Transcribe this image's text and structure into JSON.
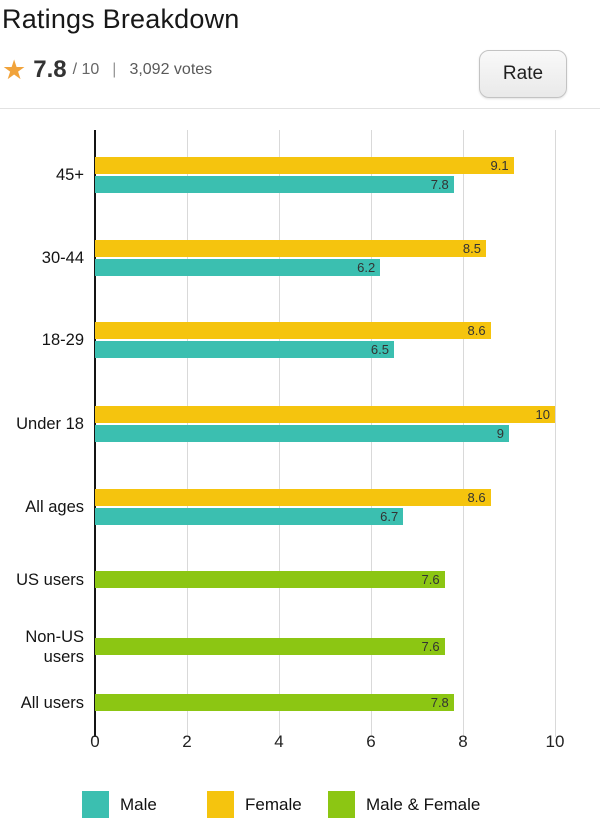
{
  "header": {
    "title": "Ratings Breakdown",
    "rating": {
      "star_icon": "★",
      "score": "7.8",
      "out_of": "/ 10",
      "separator": "|",
      "votes": "3,092 votes"
    },
    "rate_button_label": "Rate"
  },
  "colors": {
    "male": "#3BBFB0",
    "female": "#F5C40E",
    "male_female": "#8CC613",
    "star": "#F1A33B",
    "grid": "#D9D9D9",
    "axis": "#141414"
  },
  "chart_data": {
    "type": "bar",
    "orientation": "horizontal",
    "title": "Ratings Breakdown",
    "xlabel": "",
    "ylabel": "",
    "xlim": [
      0,
      10
    ],
    "xticks": [
      0,
      2,
      4,
      6,
      8,
      10
    ],
    "grid": true,
    "value_labels": "inside-end",
    "legend_position": "bottom",
    "legend": [
      {
        "name": "Male",
        "color": "#3BBFB0"
      },
      {
        "name": "Female",
        "color": "#F5C40E"
      },
      {
        "name": "Male & Female",
        "color": "#8CC613"
      }
    ],
    "categories": [
      "45+",
      "30-44",
      "18-29",
      "Under 18",
      "All ages",
      "US users",
      "Non-US users",
      "All users"
    ],
    "rows": [
      {
        "label": "45+",
        "bars": [
          {
            "series": "Female",
            "value": 9.1
          },
          {
            "series": "Male",
            "value": 7.8
          }
        ]
      },
      {
        "label": "30-44",
        "bars": [
          {
            "series": "Female",
            "value": 8.5
          },
          {
            "series": "Male",
            "value": 6.2
          }
        ]
      },
      {
        "label": "18-29",
        "bars": [
          {
            "series": "Female",
            "value": 8.6
          },
          {
            "series": "Male",
            "value": 6.5
          }
        ]
      },
      {
        "label": "Under 18",
        "bars": [
          {
            "series": "Female",
            "value": 10
          },
          {
            "series": "Male",
            "value": 9
          }
        ]
      },
      {
        "label": "All ages",
        "bars": [
          {
            "series": "Female",
            "value": 8.6
          },
          {
            "series": "Male",
            "value": 6.7
          }
        ]
      },
      {
        "label": "US users",
        "bars": [
          {
            "series": "Male & Female",
            "value": 7.6
          }
        ]
      },
      {
        "label": "Non-US users",
        "bars": [
          {
            "series": "Male & Female",
            "value": 7.6
          }
        ]
      },
      {
        "label": "All users",
        "bars": [
          {
            "series": "Male & Female",
            "value": 7.8
          }
        ]
      }
    ]
  }
}
